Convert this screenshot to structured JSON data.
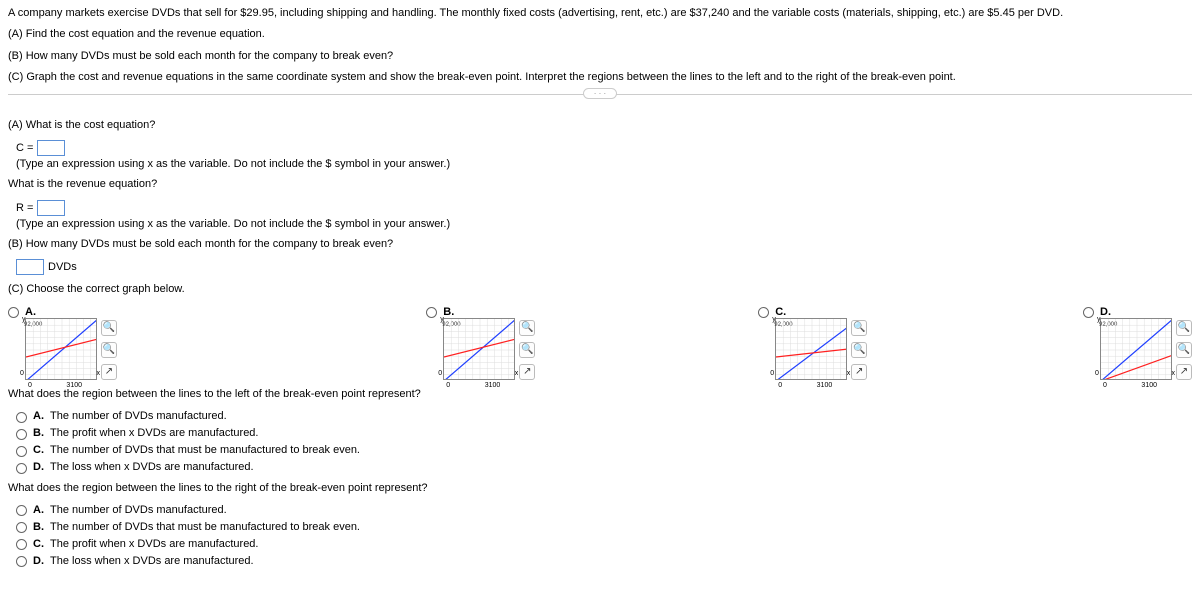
{
  "problem": {
    "intro": "A company markets exercise DVDs that sell for $29.95, including shipping and handling. The monthly fixed costs (advertising, rent, etc.) are $37,240 and the variable costs (materials, shipping, etc.) are $5.45 per DVD.",
    "partA": "(A) Find the cost equation and the revenue equation.",
    "partB": "(B) How many DVDs must be sold each month for the company to break even?",
    "partC": "(C) Graph the cost and revenue equations in the same coordinate system and show the break-even point. Interpret the regions between the lines to the left and to the right of the break-even point."
  },
  "qA": {
    "prompt": "(A) What is the cost equation?",
    "eq_c_lhs": "C =",
    "hint": "(Type an expression using x as the variable. Do not include the $ symbol in your answer.)",
    "prompt2": "What is the revenue equation?",
    "eq_r_lhs": "R =",
    "hint2": "(Type an expression using x as the variable. Do not include the $ symbol in your answer.)"
  },
  "qB": {
    "prompt": "(B) How many DVDs must be sold each month for the company to break even?",
    "unit": "DVDs"
  },
  "qC": {
    "prompt": "(C) Choose the correct graph below.",
    "options": [
      "A.",
      "B.",
      "C.",
      "D."
    ],
    "axis": {
      "y_label": "y",
      "y_max": "92,000",
      "x_label": "x",
      "x_max": "3100",
      "zero": "0"
    },
    "colors": {
      "revenue": "#1f3fff",
      "cost": "#ff2020",
      "grid": "#dddddd",
      "border": "#888888"
    },
    "graphs": {
      "A": {
        "rev": [
          [
            0,
            62
          ],
          [
            72,
            0
          ]
        ],
        "cost": [
          [
            0,
            38
          ],
          [
            72,
            20
          ]
        ]
      },
      "B": {
        "rev": [
          [
            0,
            62
          ],
          [
            72,
            0
          ]
        ],
        "cost": [
          [
            0,
            38
          ],
          [
            72,
            20
          ]
        ]
      },
      "C": {
        "rev": [
          [
            0,
            62
          ],
          [
            72,
            8
          ]
        ],
        "cost": [
          [
            0,
            38
          ],
          [
            72,
            30
          ]
        ]
      },
      "D": {
        "rev": [
          [
            0,
            62
          ],
          [
            72,
            0
          ]
        ],
        "cost": [
          [
            0,
            62
          ],
          [
            72,
            36
          ]
        ]
      }
    },
    "tools": {
      "zoom_in": "⊕",
      "zoom_out": "⊖",
      "popout": "⇱"
    }
  },
  "qLeft": {
    "prompt": "What does the region between the lines to the left of the break-even point represent?",
    "opts": {
      "A": "The number of DVDs manufactured.",
      "B": "The profit when x DVDs are manufactured.",
      "C": "The number of DVDs that must be manufactured to break even.",
      "D": "The loss when x DVDs are manufactured."
    }
  },
  "qRight": {
    "prompt": "What does the region between the lines to the right of the break-even point represent?",
    "opts": {
      "A": "The number of DVDs manufactured.",
      "B": "The number of DVDs that must be manufactured to break even.",
      "C": "The profit when x DVDs are manufactured.",
      "D": "The loss when x DVDs are manufactured."
    }
  },
  "labels": {
    "A": "A.",
    "B": "B.",
    "C": "C.",
    "D": "D."
  },
  "ellipsis": "· · ·"
}
